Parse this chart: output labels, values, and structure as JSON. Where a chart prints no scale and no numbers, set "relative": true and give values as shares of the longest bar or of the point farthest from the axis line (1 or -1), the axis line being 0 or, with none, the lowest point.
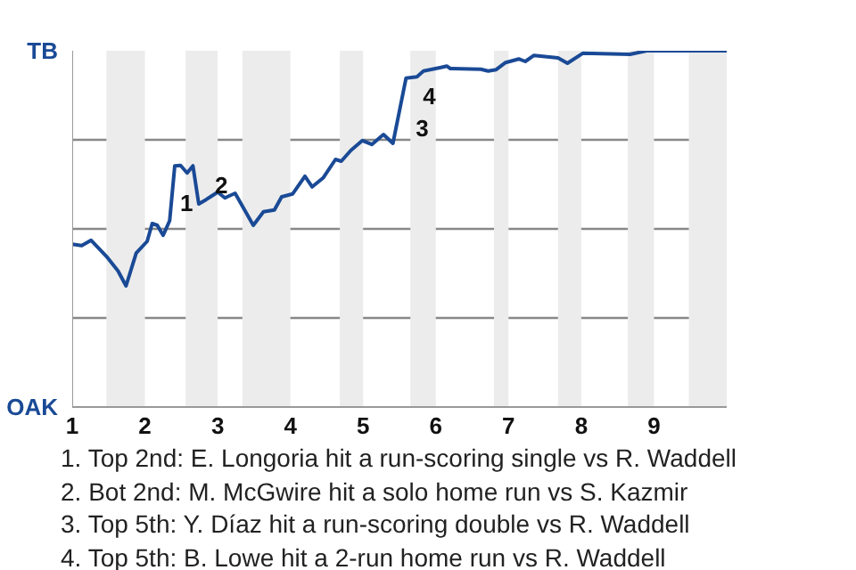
{
  "chart_data": {
    "type": "line",
    "relative": true,
    "xlim": [
      1,
      10
    ],
    "xticks": [
      1,
      2,
      3,
      4,
      5,
      6,
      7,
      8,
      9
    ],
    "grid": "y",
    "marker": "none",
    "line_style": "solid",
    "series": [
      {
        "color": "#1a4a96",
        "x": [
          1.0,
          1.13,
          1.26,
          1.47,
          1.63,
          1.74,
          1.88,
          2.03,
          2.1,
          2.17,
          2.25,
          2.34,
          2.41,
          2.49,
          2.58,
          2.66,
          2.74,
          2.84,
          2.9,
          3.0,
          3.1,
          3.24,
          3.49,
          3.63,
          3.78,
          3.88,
          4.03,
          4.2,
          4.3,
          4.45,
          4.62,
          4.7,
          4.83,
          4.99,
          5.12,
          5.28,
          5.41,
          5.59,
          5.74,
          5.83,
          6.07,
          6.15,
          6.2,
          6.62,
          6.72,
          6.83,
          6.96,
          7.14,
          7.23,
          7.35,
          7.68,
          7.81,
          8.02,
          8.67,
          8.9,
          10.0
        ],
        "values": [
          0.457,
          0.453,
          0.468,
          0.423,
          0.382,
          0.34,
          0.432,
          0.465,
          0.515,
          0.51,
          0.482,
          0.523,
          0.677,
          0.678,
          0.657,
          0.677,
          0.57,
          0.582,
          0.59,
          0.603,
          0.587,
          0.6,
          0.51,
          0.548,
          0.553,
          0.59,
          0.598,
          0.648,
          0.618,
          0.643,
          0.695,
          0.69,
          0.72,
          0.748,
          0.737,
          0.765,
          0.74,
          0.923,
          0.927,
          0.943,
          0.953,
          0.957,
          0.95,
          0.948,
          0.943,
          0.947,
          0.967,
          0.977,
          0.97,
          0.987,
          0.98,
          0.965,
          0.993,
          0.99,
          1,
          1
        ]
      }
    ],
    "bands": [
      {
        "axis": "x",
        "from": 1.47,
        "to": 2,
        "color": "#ececec"
      },
      {
        "axis": "x",
        "from": 2.56,
        "to": 3,
        "color": "#ececec"
      },
      {
        "axis": "x",
        "from": 3.34,
        "to": 4,
        "color": "#ececec"
      },
      {
        "axis": "x",
        "from": 4.68,
        "to": 5,
        "color": "#ececec"
      },
      {
        "axis": "x",
        "from": 5.65,
        "to": 6,
        "color": "#ececec"
      },
      {
        "axis": "x",
        "from": 6.8,
        "to": 7,
        "color": "#ececec"
      },
      {
        "axis": "x",
        "from": 7.68,
        "to": 8,
        "color": "#ececec"
      },
      {
        "axis": "x",
        "from": 8.64,
        "to": 9,
        "color": "#ececec"
      },
      {
        "axis": "x",
        "from": 9.48,
        "to": 10,
        "color": "#ececec"
      }
    ],
    "annotations": [
      "TB",
      "OAK",
      {
        "text": "1",
        "x": 2.36,
        "y": 0.55
      },
      {
        "text": "2",
        "x": 2.84,
        "y": 0.6
      },
      {
        "text": "3",
        "x": 5.6,
        "y": 0.76
      },
      {
        "text": "4",
        "x": 5.7,
        "y": 0.85
      },
      "1. Top 2nd: E. Longoria hit a run-scoring single vs R. Waddell",
      "2. Bot 2nd: M. McGwire hit a solo home run vs S. Kazmir",
      "3. Top 5th: Y. Díaz hit a run-scoring double vs R. Waddell",
      "4. Top 5th: B. Lowe hit a 2-run home run vs R. Waddell"
    ]
  }
}
